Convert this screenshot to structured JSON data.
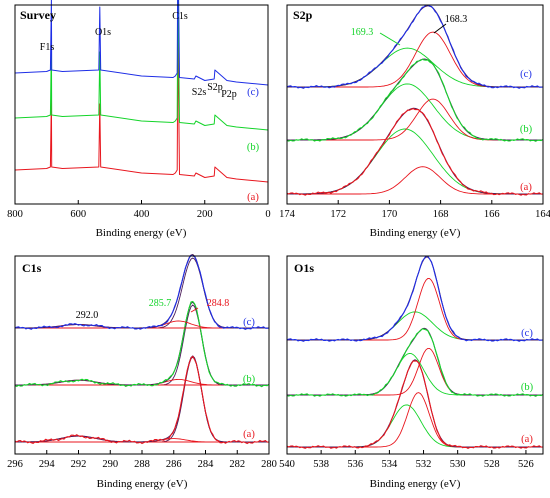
{
  "colors": {
    "a": "#e8161e",
    "b": "#14d42a",
    "c": "#1e2ee6",
    "envelope": "#4b1c5a",
    "frame": "#000000"
  },
  "chart_data": [
    {
      "type": "line",
      "title": "Survey",
      "xlabel": "Binding energy (eV)",
      "ylabel": "",
      "xlim": [
        800,
        0
      ],
      "xticks": [
        "800",
        "600",
        "400",
        "200",
        "0"
      ],
      "grid": false,
      "series": [
        {
          "name": "(a)",
          "x": [
            800,
            700,
            688,
            685,
            684,
            650,
            535,
            532,
            529,
            400,
            300,
            293,
            287,
            285,
            280,
            233,
            228,
            200,
            170,
            168,
            130,
            100,
            50,
            0
          ],
          "y": [
            0.08,
            0.09,
            0.1,
            0.58,
            0.1,
            0.09,
            0.1,
            0.52,
            0.1,
            0.06,
            0.05,
            0.06,
            0.08,
            1.0,
            0.05,
            0.04,
            0.06,
            0.03,
            0.04,
            0.1,
            0.03,
            0.02,
            0.01,
            0.0
          ]
        },
        {
          "name": "(b)",
          "x": [
            800,
            700,
            688,
            685,
            684,
            650,
            535,
            532,
            529,
            400,
            300,
            293,
            287,
            285,
            280,
            233,
            228,
            200,
            170,
            168,
            130,
            100,
            50,
            0
          ],
          "y": [
            0.08,
            0.09,
            0.1,
            0.58,
            0.1,
            0.09,
            0.1,
            0.52,
            0.1,
            0.06,
            0.05,
            0.06,
            0.08,
            1.0,
            0.05,
            0.04,
            0.06,
            0.03,
            0.04,
            0.1,
            0.03,
            0.02,
            0.01,
            0.0
          ]
        },
        {
          "name": "(c)",
          "x": [
            800,
            700,
            688,
            685,
            684,
            650,
            535,
            532,
            529,
            400,
            300,
            293,
            287,
            285,
            280,
            233,
            228,
            200,
            170,
            168,
            130,
            100,
            50,
            0
          ],
          "y": [
            0.08,
            0.09,
            0.1,
            0.58,
            0.1,
            0.09,
            0.1,
            0.52,
            0.1,
            0.06,
            0.05,
            0.06,
            0.08,
            1.0,
            0.05,
            0.04,
            0.06,
            0.03,
            0.04,
            0.1,
            0.03,
            0.02,
            0.01,
            0.0
          ]
        }
      ],
      "annotations": [
        {
          "text": "F1s",
          "x": 686
        },
        {
          "text": "O1s",
          "x": 532
        },
        {
          "text": "C1s",
          "x": 285
        },
        {
          "text": "S2s",
          "x": 228
        },
        {
          "text": "S2p",
          "x": 168
        },
        {
          "text": "P2p",
          "x": 133
        }
      ]
    },
    {
      "type": "line",
      "title": "S2p",
      "xlabel": "Binding energy (eV)",
      "ylabel": "",
      "xlim": [
        174,
        164
      ],
      "xticks": [
        "174",
        "172",
        "170",
        "168",
        "166",
        "164"
      ],
      "grid": false,
      "series": [
        {
          "name": "(a)",
          "peaks": [
            {
              "center": 169.4,
              "amplitude": 1.0,
              "fwhm": 2.6
            },
            {
              "center": 168.7,
              "amplitude": 0.42,
              "fwhm": 1.6
            }
          ]
        },
        {
          "name": "(b)",
          "peaks": [
            {
              "center": 169.3,
              "amplitude": 0.85,
              "fwhm": 2.4
            },
            {
              "center": 168.3,
              "amplitude": 0.62,
              "fwhm": 1.5
            }
          ]
        },
        {
          "name": "(c)",
          "peaks": [
            {
              "center": 169.3,
              "amplitude": 0.58,
              "fwhm": 2.4
            },
            {
              "center": 168.3,
              "amplitude": 0.82,
              "fwhm": 1.6
            }
          ]
        }
      ],
      "annotations": [
        {
          "text": "169.3",
          "x": 169.3,
          "series": "(c)"
        },
        {
          "text": "168.3",
          "x": 168.3,
          "series": "(c)"
        }
      ]
    },
    {
      "type": "line",
      "title": "C1s",
      "xlabel": "Binding energy (eV)",
      "ylabel": "",
      "xlim": [
        296,
        280
      ],
      "xticks": [
        "296",
        "294",
        "292",
        "290",
        "288",
        "286",
        "284",
        "282",
        "280"
      ],
      "grid": false,
      "series": [
        {
          "name": "(a)",
          "peaks": [
            {
              "center": 284.8,
              "amplitude": 1.0,
              "fwhm": 1.3
            },
            {
              "center": 286.0,
              "amplitude": 0.04,
              "fwhm": 1.8
            },
            {
              "center": 292.0,
              "amplitude": 0.07,
              "fwhm": 2.6
            }
          ]
        },
        {
          "name": "(b)",
          "peaks": [
            {
              "center": 284.8,
              "amplitude": 1.0,
              "fwhm": 1.3
            },
            {
              "center": 285.7,
              "amplitude": 0.07,
              "fwhm": 1.8
            },
            {
              "center": 292.0,
              "amplitude": 0.06,
              "fwhm": 2.6
            }
          ]
        },
        {
          "name": "(c)",
          "peaks": [
            {
              "center": 284.8,
              "amplitude": 1.0,
              "fwhm": 1.5
            },
            {
              "center": 285.7,
              "amplitude": 0.1,
              "fwhm": 1.8
            },
            {
              "center": 292.0,
              "amplitude": 0.05,
              "fwhm": 2.6
            }
          ]
        }
      ],
      "annotations": [
        {
          "text": "292.0",
          "x": 292.0,
          "series": "(c)"
        },
        {
          "text": "285.7",
          "x": 285.7,
          "series": "(c)"
        },
        {
          "text": "284.8",
          "x": 284.8,
          "series": "(c)"
        }
      ]
    },
    {
      "type": "line",
      "title": "O1s",
      "xlabel": "Binding energy (eV)",
      "ylabel": "",
      "xlim": [
        540,
        525
      ],
      "xticks": [
        "540",
        "538",
        "536",
        "534",
        "532",
        "530",
        "528",
        "526"
      ],
      "grid": false,
      "series": [
        {
          "name": "(a)",
          "peaks": [
            {
              "center": 533.0,
              "amplitude": 0.62,
              "fwhm": 2.0
            },
            {
              "center": 532.3,
              "amplitude": 0.8,
              "fwhm": 1.5
            }
          ]
        },
        {
          "name": "(b)",
          "peaks": [
            {
              "center": 532.8,
              "amplitude": 0.64,
              "fwhm": 1.9
            },
            {
              "center": 531.7,
              "amplitude": 0.72,
              "fwhm": 1.4
            }
          ]
        },
        {
          "name": "(c)",
          "peaks": [
            {
              "center": 532.5,
              "amplitude": 0.42,
              "fwhm": 2.4
            },
            {
              "center": 531.7,
              "amplitude": 0.92,
              "fwhm": 1.5
            }
          ]
        }
      ]
    }
  ]
}
